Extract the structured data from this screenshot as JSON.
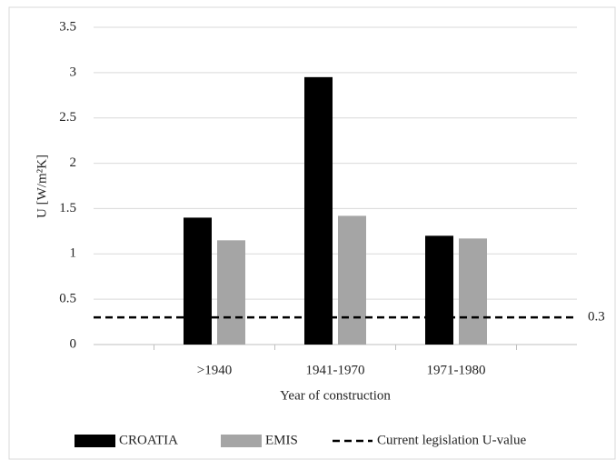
{
  "chart_data": {
    "type": "bar",
    "x_label": "Year of construction",
    "y_label": "U [W/m²K]",
    "categories": [
      null,
      ">1940",
      "1941-1970",
      "1971-1980",
      null
    ],
    "series": [
      {
        "name": "CROATIA",
        "color": "#000000",
        "values": [
          null,
          1.4,
          2.95,
          1.2,
          null
        ]
      },
      {
        "name": "EMIS",
        "color": "#a5a5a5",
        "values": [
          null,
          1.15,
          1.42,
          1.17,
          null
        ]
      },
      {
        "name": "Current legislation U-value",
        "color": "#000000",
        "type": "line",
        "dashed": true,
        "values": [
          0.3,
          0.3,
          0.3,
          0.3,
          0.3
        ]
      }
    ],
    "ylim": [
      0,
      3.5
    ],
    "yticks": [
      0,
      0.5,
      1,
      1.5,
      2,
      2.5,
      3,
      3.5
    ],
    "grid": true,
    "legend": "bottom"
  }
}
